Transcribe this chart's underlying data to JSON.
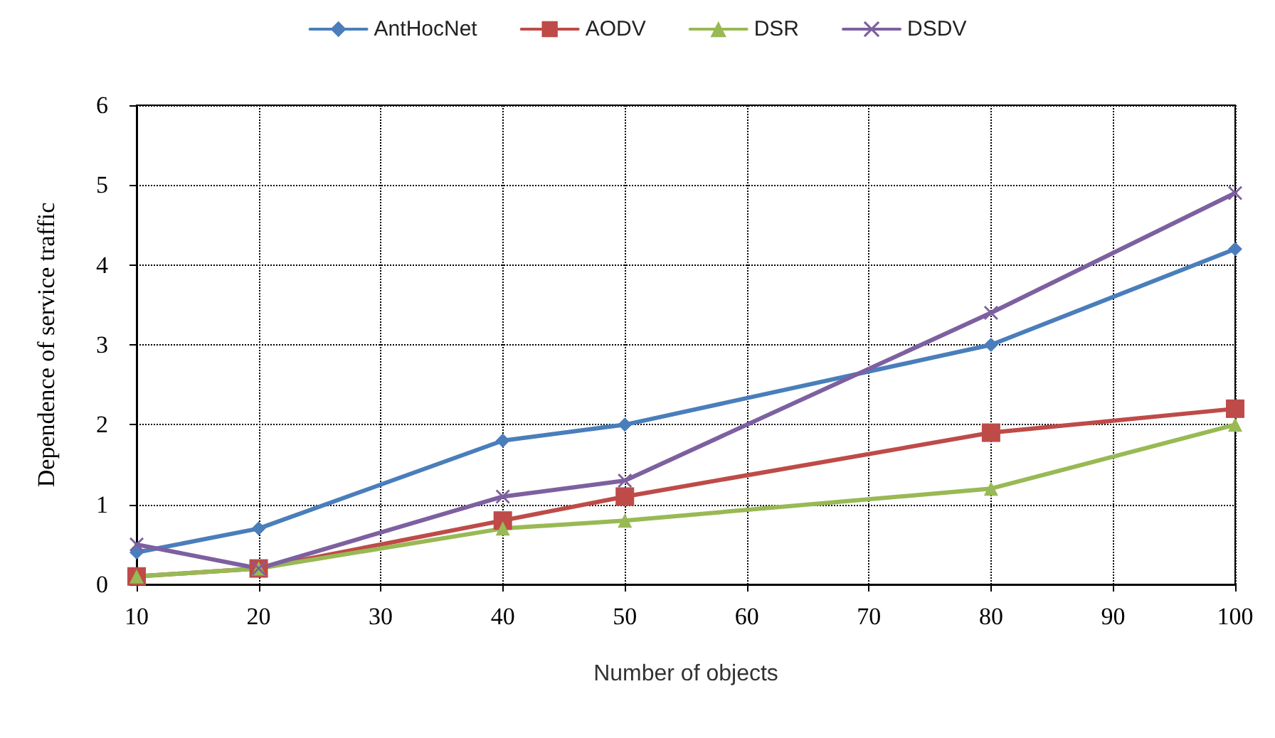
{
  "chart_data": {
    "type": "line",
    "xlabel": "Number of objects",
    "ylabel": "Dependence of service traffic",
    "xlim": [
      10,
      100
    ],
    "xticks": [
      10,
      20,
      30,
      40,
      50,
      60,
      70,
      80,
      90,
      100
    ],
    "ylim": [
      0,
      6
    ],
    "yticks": [
      0,
      1,
      2,
      3,
      4,
      5,
      6
    ],
    "x": [
      10,
      20,
      40,
      50,
      80,
      100
    ],
    "series": [
      {
        "name": "AntHocNet",
        "color": "#4a7ebb",
        "marker": "diamond",
        "values": [
          0.4,
          0.7,
          1.8,
          2.0,
          3.0,
          4.2
        ]
      },
      {
        "name": "AODV",
        "color": "#be4b48",
        "marker": "square",
        "values": [
          0.1,
          0.2,
          0.8,
          1.1,
          1.9,
          2.2
        ]
      },
      {
        "name": "DSR",
        "color": "#98b954",
        "marker": "triangle",
        "values": [
          0.1,
          0.2,
          0.7,
          0.8,
          1.2,
          2.0
        ]
      },
      {
        "name": "DSDV",
        "color": "#7d60a0",
        "marker": "cross",
        "values": [
          0.5,
          0.2,
          1.1,
          1.3,
          3.4,
          4.9
        ]
      }
    ],
    "grid": true,
    "legend": "top",
    "line_style": "solid"
  }
}
